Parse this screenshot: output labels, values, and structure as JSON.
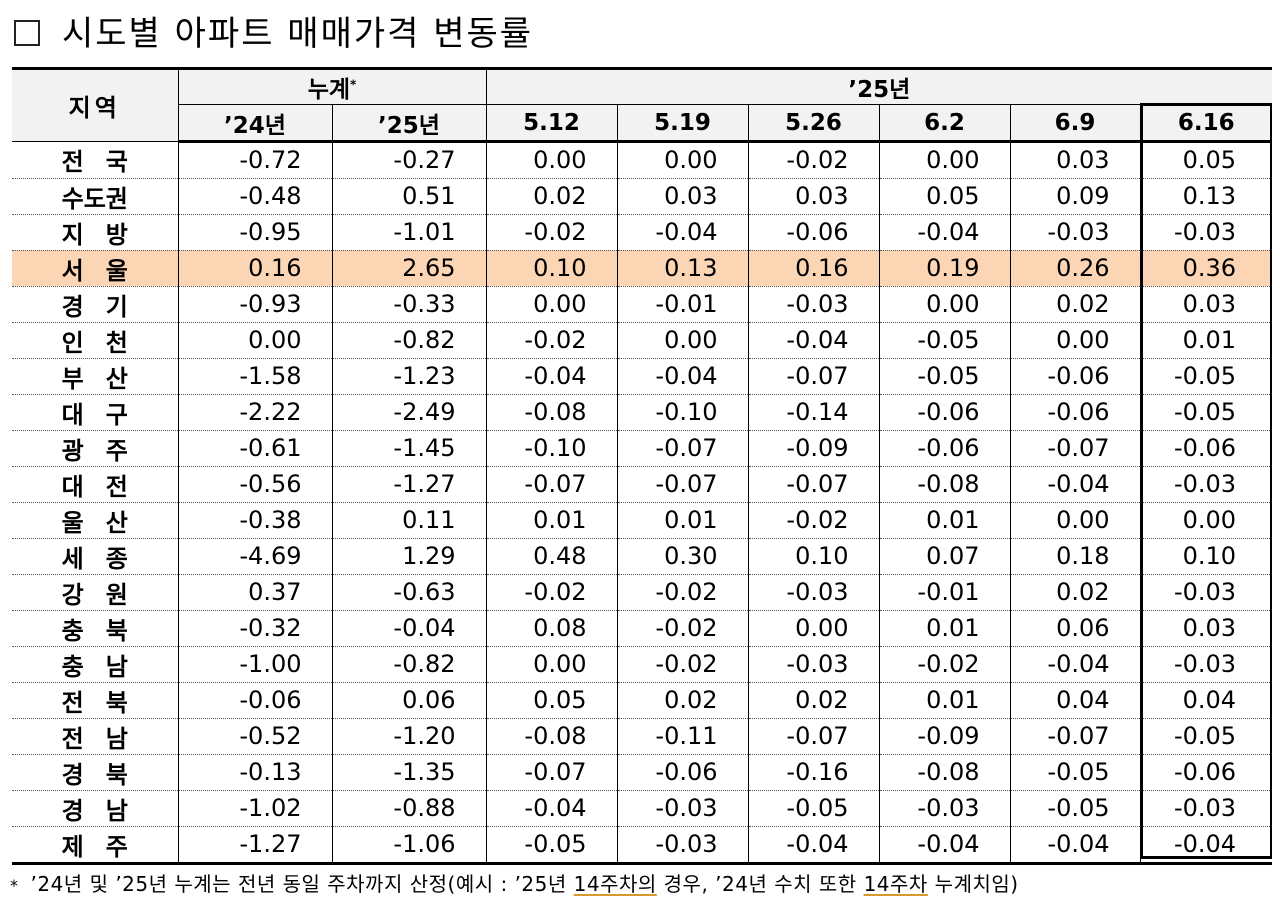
{
  "title": "시도별 아파트 매매가격 변동률",
  "header": {
    "region_label": "지역",
    "cumulative_label": "누계",
    "cumulative_mark": "*",
    "year_label": "’25년",
    "cols": [
      "’24년",
      "’25년",
      "5.12",
      "5.19",
      "5.26",
      "6.2",
      "6.9",
      "6.16"
    ]
  },
  "rows": [
    {
      "region": "전국",
      "values": [
        "-0.72",
        "-0.27",
        "0.00",
        "0.00",
        "-0.02",
        "0.00",
        "0.03",
        "0.05"
      ]
    },
    {
      "region": "수도권",
      "values": [
        "-0.48",
        "0.51",
        "0.02",
        "0.03",
        "0.03",
        "0.05",
        "0.09",
        "0.13"
      ]
    },
    {
      "region": "지방",
      "values": [
        "-0.95",
        "-1.01",
        "-0.02",
        "-0.04",
        "-0.06",
        "-0.04",
        "-0.03",
        "-0.03"
      ]
    },
    {
      "region": "서울",
      "values": [
        "0.16",
        "2.65",
        "0.10",
        "0.13",
        "0.16",
        "0.19",
        "0.26",
        "0.36"
      ],
      "highlight": true
    },
    {
      "region": "경기",
      "values": [
        "-0.93",
        "-0.33",
        "0.00",
        "-0.01",
        "-0.03",
        "0.00",
        "0.02",
        "0.03"
      ]
    },
    {
      "region": "인천",
      "values": [
        "0.00",
        "-0.82",
        "-0.02",
        "0.00",
        "-0.04",
        "-0.05",
        "0.00",
        "0.01"
      ]
    },
    {
      "region": "부산",
      "values": [
        "-1.58",
        "-1.23",
        "-0.04",
        "-0.04",
        "-0.07",
        "-0.05",
        "-0.06",
        "-0.05"
      ]
    },
    {
      "region": "대구",
      "values": [
        "-2.22",
        "-2.49",
        "-0.08",
        "-0.10",
        "-0.14",
        "-0.06",
        "-0.06",
        "-0.05"
      ]
    },
    {
      "region": "광주",
      "values": [
        "-0.61",
        "-1.45",
        "-0.10",
        "-0.07",
        "-0.09",
        "-0.06",
        "-0.07",
        "-0.06"
      ]
    },
    {
      "region": "대전",
      "values": [
        "-0.56",
        "-1.27",
        "-0.07",
        "-0.07",
        "-0.07",
        "-0.08",
        "-0.04",
        "-0.03"
      ]
    },
    {
      "region": "울산",
      "values": [
        "-0.38",
        "0.11",
        "0.01",
        "0.01",
        "-0.02",
        "0.01",
        "0.00",
        "0.00"
      ]
    },
    {
      "region": "세종",
      "values": [
        "-4.69",
        "1.29",
        "0.48",
        "0.30",
        "0.10",
        "0.07",
        "0.18",
        "0.10"
      ]
    },
    {
      "region": "강원",
      "values": [
        "0.37",
        "-0.63",
        "-0.02",
        "-0.02",
        "-0.03",
        "-0.01",
        "0.02",
        "-0.03"
      ]
    },
    {
      "region": "충북",
      "values": [
        "-0.32",
        "-0.04",
        "0.08",
        "-0.02",
        "0.00",
        "0.01",
        "0.06",
        "0.03"
      ]
    },
    {
      "region": "충남",
      "values": [
        "-1.00",
        "-0.82",
        "0.00",
        "-0.02",
        "-0.03",
        "-0.02",
        "-0.04",
        "-0.03"
      ]
    },
    {
      "region": "전북",
      "values": [
        "-0.06",
        "0.06",
        "0.05",
        "0.02",
        "0.02",
        "0.01",
        "0.04",
        "0.04"
      ]
    },
    {
      "region": "전남",
      "values": [
        "-0.52",
        "-1.20",
        "-0.08",
        "-0.11",
        "-0.07",
        "-0.09",
        "-0.07",
        "-0.05"
      ]
    },
    {
      "region": "경북",
      "values": [
        "-0.13",
        "-1.35",
        "-0.07",
        "-0.06",
        "-0.16",
        "-0.08",
        "-0.05",
        "-0.06"
      ]
    },
    {
      "region": "경남",
      "values": [
        "-1.02",
        "-0.88",
        "-0.04",
        "-0.03",
        "-0.05",
        "-0.03",
        "-0.05",
        "-0.03"
      ]
    },
    {
      "region": "제주",
      "values": [
        "-1.27",
        "-1.06",
        "-0.05",
        "-0.03",
        "-0.04",
        "-0.04",
        "-0.04",
        "-0.04"
      ]
    }
  ],
  "footnote": {
    "mark": "*",
    "text_a": "’24년 및 ’25년 누계는 전년 동일 주차까지 산정(예시 : ’25년 ",
    "text_b": "14주차의",
    "text_c": " 경우, ’24년 수치 또한 ",
    "text_d": "14주차",
    "text_e": " 누계치임)"
  },
  "colors": {
    "highlight_row": "#fcd5b5",
    "header_bg": "#f2f2f2",
    "footnote_underline": "#d49a2a"
  }
}
